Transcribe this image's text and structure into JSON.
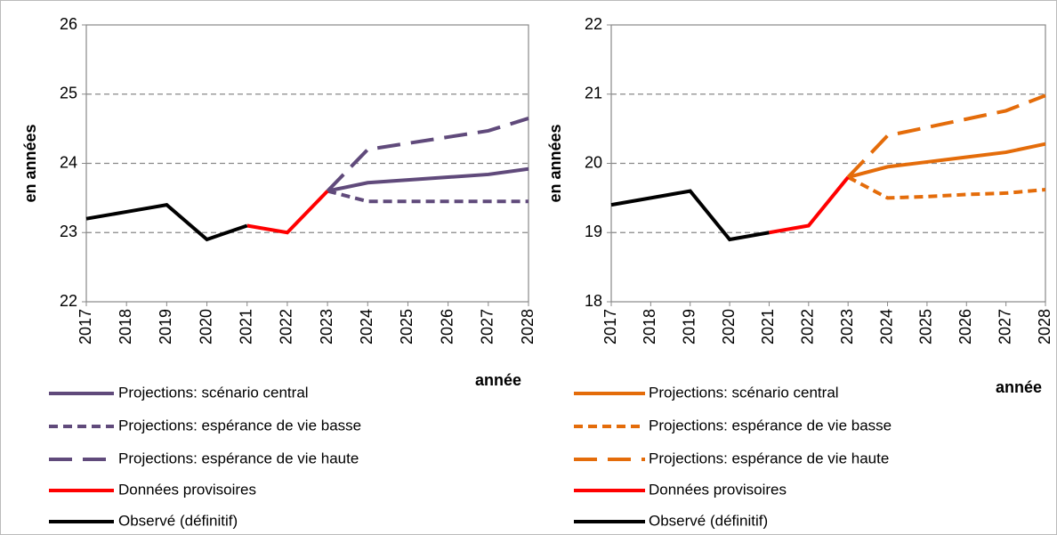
{
  "chart_data": [
    {
      "type": "line",
      "xlabel": "année",
      "ylabel": "en années",
      "x": [
        2017,
        2018,
        2019,
        2020,
        2021,
        2022,
        2023,
        2024,
        2025,
        2026,
        2027,
        2028
      ],
      "xlim": [
        2017,
        2028
      ],
      "xticks": [
        2017,
        2018,
        2019,
        2020,
        2021,
        2022,
        2023,
        2024,
        2025,
        2026,
        2027,
        2028
      ],
      "ylim": [
        22,
        26
      ],
      "yticks": [
        22,
        23,
        24,
        25,
        26
      ],
      "grid": true,
      "series": [
        {
          "name": "Projections: scénario central",
          "color": "#604a7b",
          "dash": "solid",
          "values": [
            null,
            null,
            null,
            null,
            null,
            null,
            23.6,
            23.72,
            23.76,
            23.8,
            23.84,
            23.92
          ]
        },
        {
          "name": "Projections: espérance de vie basse",
          "color": "#604a7b",
          "dash": "dashed",
          "values": [
            null,
            null,
            null,
            null,
            null,
            null,
            23.6,
            23.45,
            23.45,
            23.45,
            23.45,
            23.45
          ]
        },
        {
          "name": "Projections: espérance de vie haute",
          "color": "#604a7b",
          "dash": "long-dashed",
          "values": [
            null,
            null,
            null,
            null,
            null,
            null,
            23.6,
            24.2,
            24.29,
            24.38,
            24.47,
            24.65
          ]
        },
        {
          "name": "Données provisoires",
          "color": "#ff0000",
          "dash": "solid",
          "values": [
            null,
            null,
            null,
            null,
            23.1,
            23.0,
            23.6,
            null,
            null,
            null,
            null,
            null
          ]
        },
        {
          "name": "Observé (définitif)",
          "color": "#000000",
          "dash": "solid",
          "values": [
            23.2,
            23.3,
            23.4,
            22.9,
            23.1,
            null,
            null,
            null,
            null,
            null,
            null,
            null
          ]
        }
      ]
    },
    {
      "type": "line",
      "xlabel": "année",
      "ylabel": "en années",
      "x": [
        2017,
        2018,
        2019,
        2020,
        2021,
        2022,
        2023,
        2024,
        2025,
        2026,
        2027,
        2028
      ],
      "xlim": [
        2017,
        2028
      ],
      "xticks": [
        2017,
        2018,
        2019,
        2020,
        2021,
        2022,
        2023,
        2024,
        2025,
        2026,
        2027,
        2028
      ],
      "ylim": [
        18,
        22
      ],
      "yticks": [
        18,
        19,
        20,
        21,
        22
      ],
      "grid": true,
      "series": [
        {
          "name": "Projections: scénario central",
          "color": "#e46c0a",
          "dash": "solid",
          "values": [
            null,
            null,
            null,
            null,
            null,
            null,
            19.8,
            19.95,
            20.02,
            20.09,
            20.16,
            20.28
          ]
        },
        {
          "name": "Projections: espérance de vie basse",
          "color": "#e46c0a",
          "dash": "dashed",
          "values": [
            null,
            null,
            null,
            null,
            null,
            null,
            19.8,
            19.5,
            19.52,
            19.55,
            19.57,
            19.62
          ]
        },
        {
          "name": "Projections: espérance de vie haute",
          "color": "#e46c0a",
          "dash": "long-dashed",
          "values": [
            null,
            null,
            null,
            null,
            null,
            null,
            19.8,
            20.4,
            20.52,
            20.64,
            20.76,
            20.98
          ]
        },
        {
          "name": "Données provisoires",
          "color": "#ff0000",
          "dash": "solid",
          "values": [
            null,
            null,
            null,
            null,
            19.0,
            19.1,
            19.8,
            null,
            null,
            null,
            null,
            null
          ]
        },
        {
          "name": "Observé (définitif)",
          "color": "#000000",
          "dash": "solid",
          "values": [
            19.4,
            19.5,
            19.6,
            18.9,
            19.0,
            null,
            null,
            null,
            null,
            null,
            null,
            null
          ]
        }
      ]
    }
  ]
}
